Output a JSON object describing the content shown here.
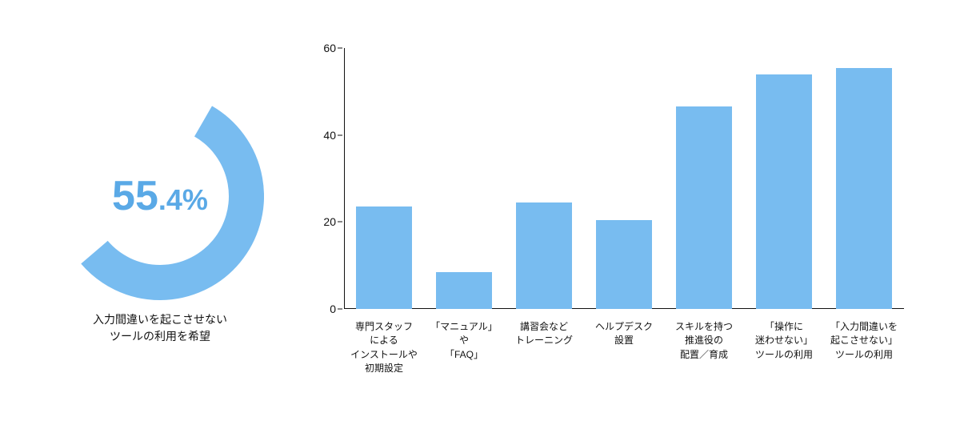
{
  "colors": {
    "accent": "#78bcf0",
    "accent_text": "#5aa9e6",
    "axis": "#111111",
    "text": "#111111",
    "background": "#ffffff"
  },
  "donut": {
    "percent": 55.4,
    "int": "55",
    "dec": ".4",
    "symbol": "%",
    "caption": "入力間違いを起こさせない\nツールの利用を希望",
    "ring_thickness": 44,
    "outer_radius": 130,
    "start_angle_deg": -60,
    "gap_color": "#ffffff",
    "ring_color": "#78bcf0",
    "text_color": "#5aa9e6",
    "int_fontsize": 52,
    "dec_fontsize": 36,
    "caption_fontsize": 14
  },
  "bar_chart": {
    "type": "bar",
    "categories": [
      "専門スタッフ\nによる\nインストールや\n初期設定",
      "「マニュアル」\nや\n「FAQ」",
      "講習会など\nトレーニング",
      "ヘルプデスク\n設置",
      "スキルを持つ\n推進役の\n配置／育成",
      "「操作に\n迷わせない」\nツールの利用",
      "「入力間違いを\n起こさせない」\nツールの利用"
    ],
    "values": [
      23.5,
      8.5,
      24.5,
      20.5,
      46.5,
      54.0,
      55.4
    ],
    "bar_color": "#78bcf0",
    "ylim": [
      0,
      60
    ],
    "ytick_step": 20,
    "yticks": [
      0,
      20,
      40,
      60
    ],
    "bar_width_ratio": 0.7,
    "axis_color": "#111111",
    "background_color": "#ffffff",
    "label_fontsize": 12,
    "tick_fontsize": 14
  }
}
